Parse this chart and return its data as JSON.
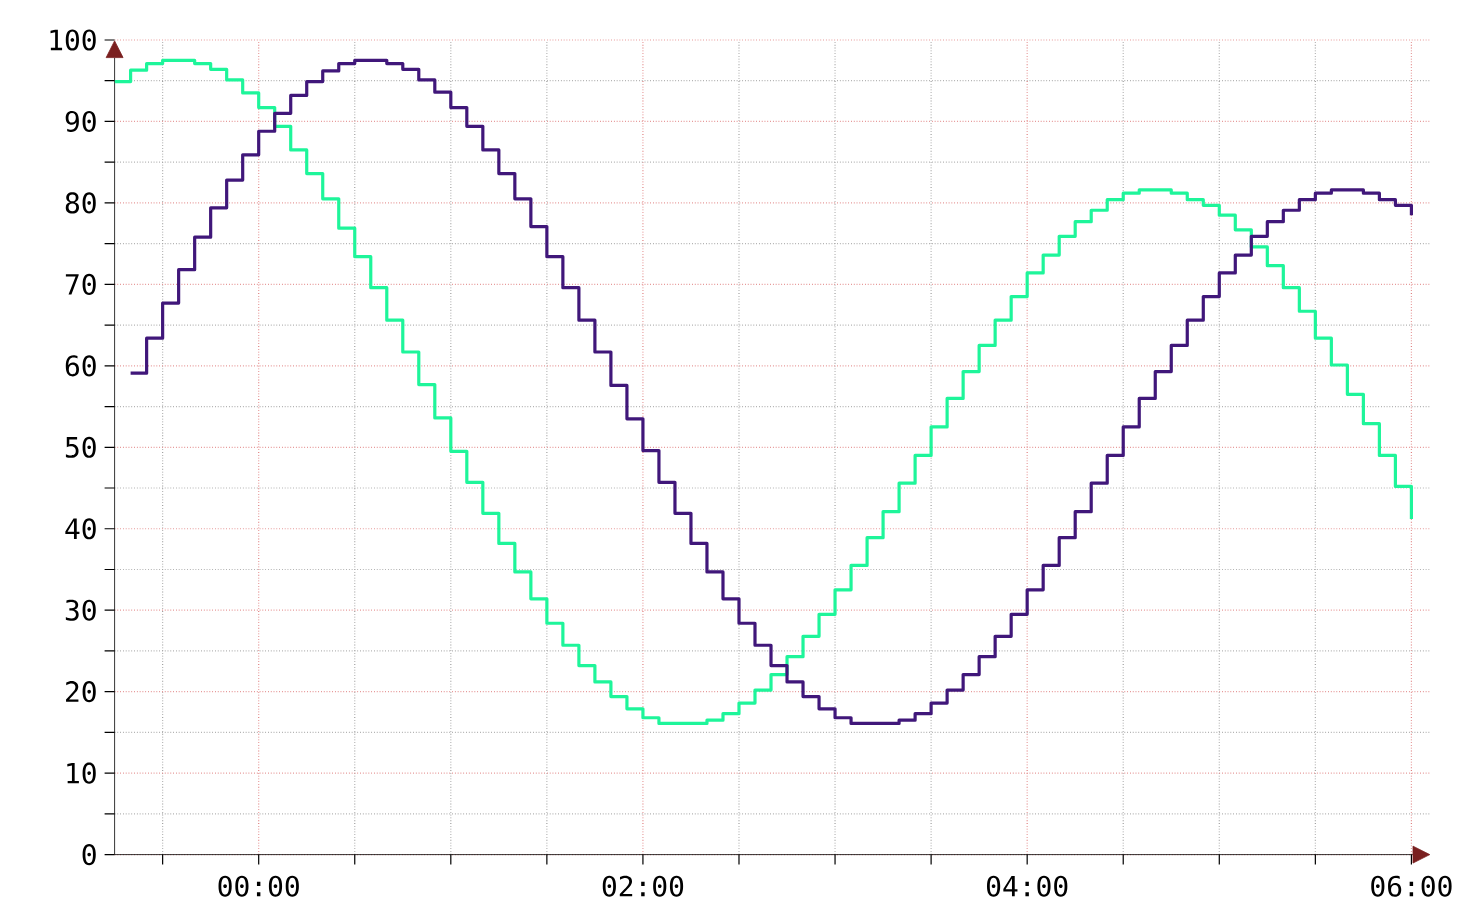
{
  "chart_data": {
    "type": "step",
    "series": [
      {
        "color": "#1ef59a",
        "x": [
          -0.75,
          -0.6667,
          -0.5833,
          -0.5,
          -0.4167,
          -0.3333,
          -0.25,
          -0.1667,
          -0.0833,
          0,
          0.0833,
          0.1667,
          0.25,
          0.3333,
          0.4167,
          0.5,
          0.5833,
          0.6667,
          0.75,
          0.8333,
          0.9167,
          1,
          1.0833,
          1.1667,
          1.25,
          1.3333,
          1.4167,
          1.5,
          1.5833,
          1.6667,
          1.75,
          1.8333,
          1.9167,
          2,
          2.0833,
          2.1667,
          2.25,
          2.3333,
          2.4167,
          2.5,
          2.5833,
          2.6667,
          2.75,
          2.8333,
          2.9167,
          3,
          3.0833,
          3.1667,
          3.25,
          3.3333,
          3.4167,
          3.5,
          3.5833,
          3.6667,
          3.75,
          3.8333,
          3.9167,
          4,
          4.0833,
          4.1667,
          4.25,
          4.3333,
          4.4167,
          4.5,
          4.5833,
          4.6667,
          4.75,
          4.8333,
          4.9167,
          5,
          5.0833,
          5.1667,
          5.25,
          5.3333,
          5.4167,
          5.5,
          5.5833,
          5.6667,
          5.75,
          5.8333,
          5.9167,
          6
        ],
        "values": [
          94.9,
          96.3,
          97.1,
          97.5,
          97.5,
          97.1,
          96.4,
          95.1,
          93.5,
          91.7,
          89.4,
          86.5,
          83.6,
          80.5,
          76.9,
          73.4,
          69.6,
          65.6,
          61.7,
          57.7,
          53.6,
          49.5,
          45.7,
          41.9,
          38.2,
          34.7,
          31.4,
          28.4,
          25.7,
          23.2,
          21.2,
          19.4,
          17.9,
          16.8,
          16.1,
          16.1,
          16.1,
          16.5,
          17.3,
          18.6,
          20.2,
          22.1,
          24.3,
          26.8,
          29.5,
          32.5,
          35.5,
          38.9,
          42.1,
          45.6,
          49.0,
          52.5,
          56.0,
          59.3,
          62.5,
          65.6,
          68.5,
          71.4,
          73.6,
          75.9,
          77.7,
          79.1,
          80.4,
          81.2,
          81.6,
          81.6,
          81.2,
          80.4,
          79.7,
          78.5,
          76.7,
          74.6,
          72.3,
          69.6,
          66.7,
          63.4,
          60.1,
          56.5,
          52.9,
          49.0,
          45.2,
          41.2
        ]
      },
      {
        "color": "#40177a",
        "x": [
          -0.6667,
          -0.5833,
          -0.5,
          -0.4167,
          -0.3333,
          -0.25,
          -0.1667,
          -0.0833,
          0,
          0.0833,
          0.1667,
          0.25,
          0.3333,
          0.4167,
          0.5,
          0.5833,
          0.6667,
          0.75,
          0.8333,
          0.9167,
          1,
          1.0833,
          1.1667,
          1.25,
          1.3333,
          1.4167,
          1.5,
          1.5833,
          1.6667,
          1.75,
          1.8333,
          1.9167,
          2,
          2.0833,
          2.1667,
          2.25,
          2.3333,
          2.4167,
          2.5,
          2.5833,
          2.6667,
          2.75,
          2.8333,
          2.9167,
          3,
          3.0833,
          3.1667,
          3.25,
          3.3333,
          3.4167,
          3.5,
          3.5833,
          3.6667,
          3.75,
          3.8333,
          3.9167,
          4,
          4.0833,
          4.1667,
          4.25,
          4.3333,
          4.4167,
          4.5,
          4.5833,
          4.6667,
          4.75,
          4.8333,
          4.9167,
          5,
          5.0833,
          5.1667,
          5.25,
          5.3333,
          5.4167,
          5.5,
          5.5833,
          5.6667,
          5.75,
          5.8333,
          5.9167,
          6
        ],
        "values": [
          59.1,
          63.4,
          67.7,
          71.8,
          75.8,
          79.4,
          82.8,
          85.9,
          88.8,
          91.0,
          93.2,
          94.9,
          96.2,
          97.1,
          97.5,
          97.5,
          97.1,
          96.4,
          95.1,
          93.6,
          91.7,
          89.4,
          86.5,
          83.6,
          80.5,
          77.1,
          73.4,
          69.6,
          65.6,
          61.7,
          57.6,
          53.5,
          49.6,
          45.7,
          41.9,
          38.2,
          34.7,
          31.4,
          28.4,
          25.7,
          23.2,
          21.2,
          19.4,
          17.9,
          16.8,
          16.1,
          16.1,
          16.1,
          16.5,
          17.3,
          18.6,
          20.2,
          22.1,
          24.3,
          26.8,
          29.5,
          32.5,
          35.5,
          38.9,
          42.1,
          45.6,
          49.0,
          52.5,
          56.0,
          59.3,
          62.5,
          65.6,
          68.5,
          71.4,
          73.6,
          75.9,
          77.7,
          79.1,
          80.4,
          81.2,
          81.6,
          81.6,
          81.2,
          80.4,
          79.7,
          78.5
        ]
      }
    ],
    "xlim": [
      -0.75,
      6.1
    ],
    "ylim": [
      0,
      100
    ],
    "xticks": [
      {
        "value": -0.5,
        "label": null
      },
      {
        "value": 0,
        "label": "00:00"
      },
      {
        "value": 0.5,
        "label": null
      },
      {
        "value": 1,
        "label": null
      },
      {
        "value": 1.5,
        "label": null
      },
      {
        "value": 2,
        "label": "02:00"
      },
      {
        "value": 2.5,
        "label": null
      },
      {
        "value": 3,
        "label": null
      },
      {
        "value": 3.5,
        "label": null
      },
      {
        "value": 4,
        "label": "04:00"
      },
      {
        "value": 4.5,
        "label": null
      },
      {
        "value": 5,
        "label": null
      },
      {
        "value": 5.5,
        "label": null
      },
      {
        "value": 6,
        "label": "06:00"
      }
    ],
    "yticks": [
      0,
      {
        "value": 5,
        "label": null
      },
      10,
      {
        "value": 15,
        "label": null
      },
      20,
      {
        "value": 25,
        "label": null
      },
      30,
      {
        "value": 35,
        "label": null
      },
      40,
      {
        "value": 45,
        "label": null
      },
      50,
      {
        "value": 55,
        "label": null
      },
      60,
      {
        "value": 65,
        "label": null
      },
      70,
      {
        "value": 75,
        "label": null
      },
      80,
      {
        "value": 85,
        "label": null
      },
      90,
      {
        "value": 95,
        "label": null
      },
      100
    ],
    "grid": true
  }
}
